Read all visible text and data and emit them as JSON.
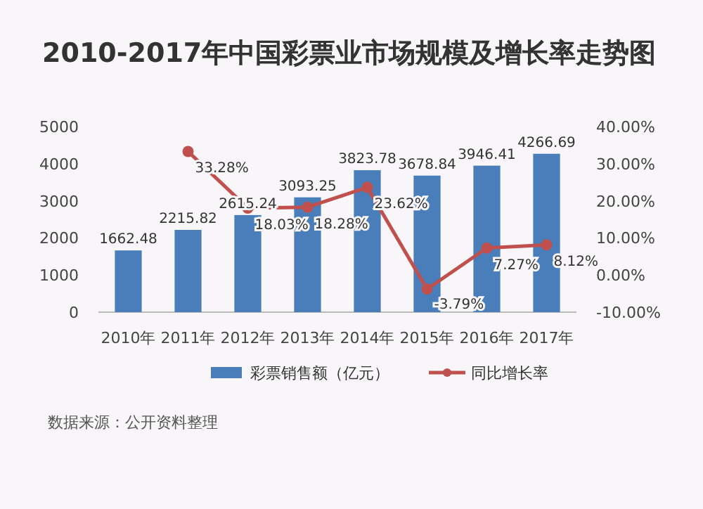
{
  "chart_data": {
    "type": "bar",
    "title": "2010-2017年中国彩票业市场规模及增长率走势图",
    "categories": [
      "2010年",
      "2011年",
      "2012年",
      "2013年",
      "2014年",
      "2015年",
      "2016年",
      "2017年"
    ],
    "series": [
      {
        "name": "彩票销售额（亿元）",
        "color": "#4a7ebb",
        "values": [
          1662.48,
          2215.82,
          2615.24,
          3093.25,
          3823.78,
          3678.84,
          3946.41,
          4266.69
        ],
        "value_labels": [
          "1662.48",
          "2215.82",
          "2615.24",
          "3093.25",
          "3823.78",
          "3678.84",
          "3946.41",
          "4266.69"
        ]
      },
      {
        "name": "同比增长率",
        "type": "line",
        "axis": "y2",
        "color": "#c0504d",
        "marker": "circle",
        "values": [
          null,
          33.28,
          18.03,
          18.28,
          23.62,
          -3.79,
          7.27,
          8.12
        ],
        "value_labels": [
          null,
          "33.28%",
          "18.03%",
          "18.28%",
          "23.62%",
          "-3.79%",
          "7.27%",
          "8.12%"
        ]
      }
    ],
    "ylim": [
      0,
      5000
    ],
    "yticks": [
      0,
      1000,
      2000,
      3000,
      4000,
      5000
    ],
    "y2lim": [
      -10,
      40
    ],
    "y2ticks": [
      {
        "value": -10,
        "label": "-10.00%"
      },
      {
        "value": 0,
        "label": "0.00%"
      },
      {
        "value": 10,
        "label": "10.00%"
      },
      {
        "value": 20,
        "label": "20.00%"
      },
      {
        "value": 30,
        "label": "30.00%"
      },
      {
        "value": 40,
        "label": "40.00%"
      }
    ],
    "grid": false,
    "legend": "bottom",
    "annotations": [
      "数据来源：公开资料整理"
    ]
  }
}
